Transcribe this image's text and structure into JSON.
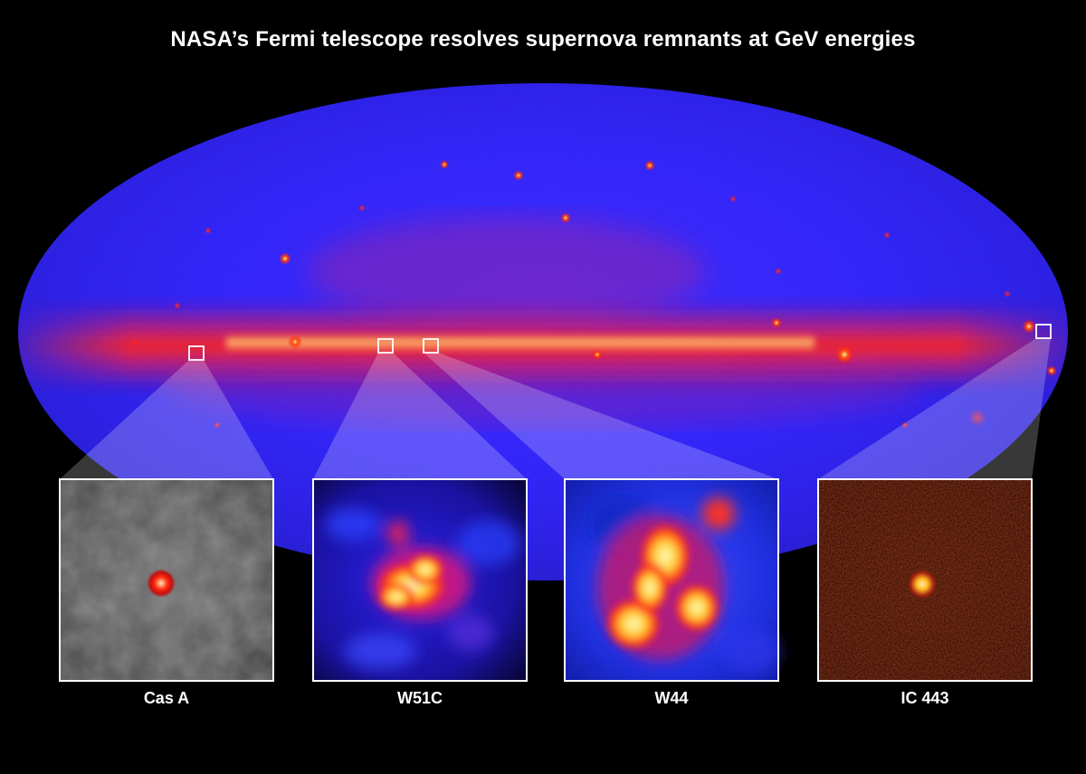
{
  "title": "NASA’s Fermi telescope resolves supernova remnants at GeV energies",
  "insets": [
    {
      "id": "cas-a",
      "label": "Cas A"
    },
    {
      "id": "w51c",
      "label": "W51C"
    },
    {
      "id": "w44",
      "label": "W44"
    },
    {
      "id": "ic443",
      "label": "IC 443"
    }
  ],
  "colors": {
    "background": "#000000",
    "sky_blue": "#2a1cff",
    "plane_red": "#ff2a10",
    "hot_yellow": "#ffee66",
    "box_outline": "#ffffff"
  }
}
